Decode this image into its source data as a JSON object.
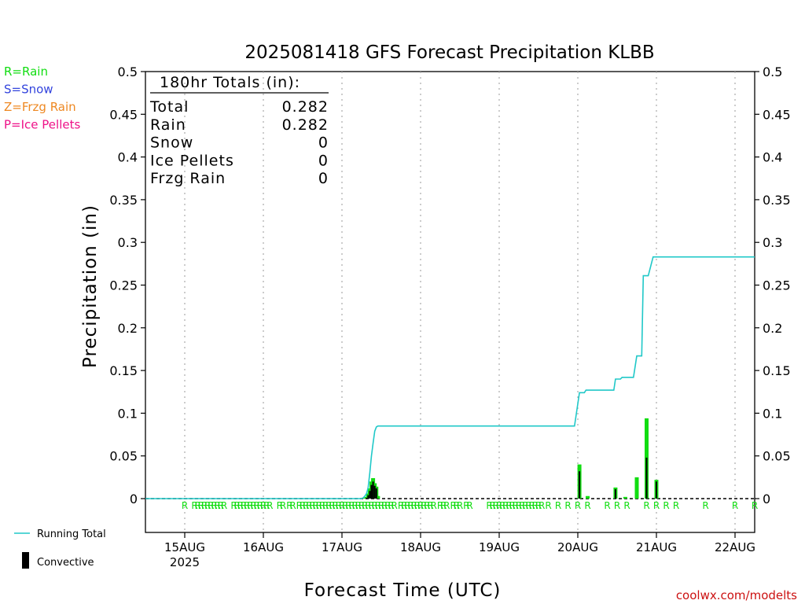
{
  "chart_data": {
    "type": "bar",
    "title": "2025081418 GFS Forecast Precipitation KLBB",
    "xlabel": "Forecast Time (UTC)",
    "ylabel": "Precipitation (in)",
    "ylim": [
      0,
      0.5
    ],
    "yticks": [
      "0",
      "0.05",
      "0.1",
      "0.15",
      "0.2",
      "0.25",
      "0.3",
      "0.35",
      "0.4",
      "0.45",
      "0.5"
    ],
    "xrange_hours": [
      -6,
      180
    ],
    "xticks": [
      {
        "hour": 6,
        "label": "15AUG"
      },
      {
        "hour": 30,
        "label": "16AUG"
      },
      {
        "hour": 54,
        "label": "17AUG"
      },
      {
        "hour": 78,
        "label": "18AUG"
      },
      {
        "hour": 102,
        "label": "19AUG"
      },
      {
        "hour": 126,
        "label": "20AUG"
      },
      {
        "hour": 150,
        "label": "21AUG"
      },
      {
        "hour": 174,
        "label": "22AUG"
      }
    ],
    "year_label": "2025",
    "grid": "vertical dotted",
    "series": [
      {
        "name": "Running Total",
        "color": "#20c8c8",
        "type": "line",
        "points": [
          [
            -6,
            0
          ],
          [
            60,
            0
          ],
          [
            60.5,
            0.001
          ],
          [
            61,
            0.003
          ],
          [
            61.5,
            0.006
          ],
          [
            62,
            0.013
          ],
          [
            62.5,
            0.03
          ],
          [
            63,
            0.05
          ],
          [
            63.5,
            0.065
          ],
          [
            64,
            0.079
          ],
          [
            64.5,
            0.084
          ],
          [
            65,
            0.085
          ],
          [
            125,
            0.085
          ],
          [
            126.5,
            0.124
          ],
          [
            128,
            0.124
          ],
          [
            128.5,
            0.127
          ],
          [
            137,
            0.127
          ],
          [
            137.5,
            0.14
          ],
          [
            139,
            0.14
          ],
          [
            139.5,
            0.142
          ],
          [
            143,
            0.142
          ],
          [
            144,
            0.167
          ],
          [
            145.5,
            0.167
          ],
          [
            146,
            0.261
          ],
          [
            147.5,
            0.261
          ],
          [
            149,
            0.283
          ],
          [
            180,
            0.283
          ]
        ]
      },
      {
        "name": "Rain",
        "color": "#11dd11",
        "type": "bar",
        "points": [
          [
            60.5,
            0.001
          ],
          [
            61.5,
            0.002
          ],
          [
            62.0,
            0.006
          ],
          [
            62.5,
            0.012
          ],
          [
            63.0,
            0.02
          ],
          [
            63.5,
            0.024
          ],
          [
            64.0,
            0.018
          ],
          [
            64.5,
            0.014
          ],
          [
            65.0,
            0.003
          ],
          [
            126.5,
            0.04
          ],
          [
            129.0,
            0.003
          ],
          [
            137.5,
            0.013
          ],
          [
            140.5,
            0.002
          ],
          [
            144.0,
            0.025
          ],
          [
            147.0,
            0.094
          ],
          [
            150.0,
            0.022
          ]
        ]
      },
      {
        "name": "Convective",
        "color": "#000000",
        "type": "bar",
        "points": [
          [
            61.5,
            0.001
          ],
          [
            62.0,
            0.004
          ],
          [
            62.5,
            0.009
          ],
          [
            63.0,
            0.016
          ],
          [
            63.5,
            0.02
          ],
          [
            64.0,
            0.015
          ],
          [
            64.5,
            0.012
          ],
          [
            126.5,
            0.032
          ],
          [
            137.5,
            0.011
          ],
          [
            147.0,
            0.048
          ],
          [
            150.0,
            0.02
          ]
        ]
      }
    ],
    "ptype_hours": [
      6,
      9,
      10,
      11,
      12,
      13,
      14,
      15,
      16,
      17,
      18,
      21,
      22,
      23,
      24,
      25,
      26,
      27,
      28,
      29,
      30,
      31,
      32,
      35,
      36,
      38,
      39,
      41,
      42,
      43,
      44,
      45,
      46,
      47,
      48,
      49,
      50,
      51,
      52,
      53,
      54,
      55,
      56,
      57,
      58,
      59,
      60,
      61,
      62,
      63,
      64,
      65,
      66,
      67,
      68,
      69,
      70,
      72,
      73,
      74,
      75,
      76,
      77,
      78,
      79,
      80,
      81,
      82,
      84,
      85,
      86,
      88,
      89,
      90,
      92,
      93,
      99,
      100,
      101,
      102,
      103,
      104,
      105,
      106,
      107,
      108,
      109,
      110,
      111,
      112,
      113,
      114,
      115,
      117,
      120,
      123,
      126,
      129,
      135,
      138,
      141,
      147,
      150,
      153,
      156,
      165,
      174,
      180
    ],
    "ptype_label": "R",
    "ptype_color": "#11dd11",
    "legend_ptypes": [
      {
        "text": "R=Rain",
        "color": "#11dd11"
      },
      {
        "text": "S=Snow",
        "color": "#3344dd"
      },
      {
        "text": "Z=Frzg Rain",
        "color": "#ee8822"
      },
      {
        "text": "P=Ice Pellets",
        "color": "#ee1188"
      }
    ],
    "legend_series": [
      {
        "text": "Running Total",
        "color": "#20c8c8"
      },
      {
        "text": "Convective",
        "color": "#000000"
      }
    ],
    "totals": {
      "header": "180hr Totals (in):",
      "rows": [
        {
          "label": "Total",
          "value": "0.282"
        },
        {
          "label": "Rain",
          "value": "0.282"
        },
        {
          "label": "Snow",
          "value": "0"
        },
        {
          "label": "Ice Pellets",
          "value": "0"
        },
        {
          "label": "Frzg Rain",
          "value": "0"
        }
      ]
    },
    "source_text": "coolwx.com/modelts",
    "source_color": "#cc1111"
  }
}
